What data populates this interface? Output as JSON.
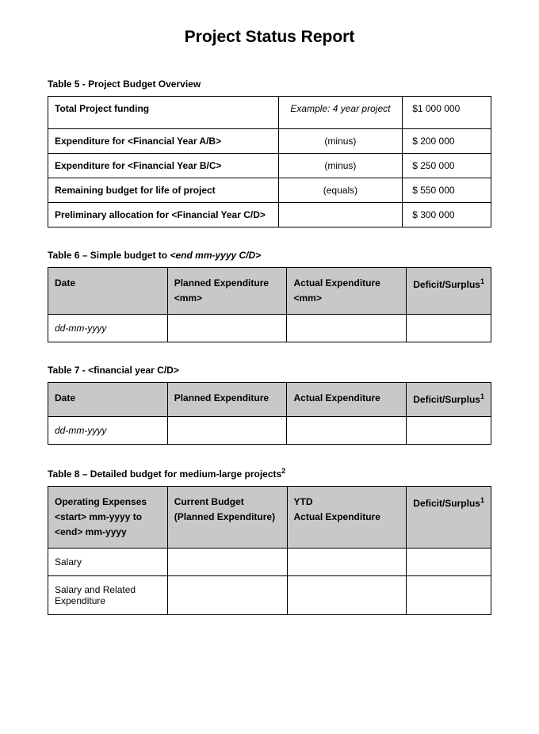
{
  "title": "Project Status Report",
  "table5": {
    "caption": "Table 5 - Project Budget Overview",
    "rows": [
      {
        "label": "Total Project funding",
        "note": "Example: 4 year project",
        "amount": "$1 000 000"
      },
      {
        "label": "Expenditure for <Financial Year A/B>",
        "note": "(minus)",
        "amount": "$   200 000"
      },
      {
        "label": "Expenditure for <Financial Year B/C>",
        "note": "(minus)",
        "amount": "$   250 000"
      },
      {
        "label": "Remaining budget for life of project",
        "note": "(equals)",
        "amount": "$   550 000"
      },
      {
        "label": "Preliminary allocation for <Financial Year C/D>",
        "note": "",
        "amount": "$   300 000"
      }
    ]
  },
  "table6": {
    "caption_prefix": "Table 6 – Simple budget to ",
    "caption_italic": "<end mm-yyyy C/D>",
    "headers": {
      "col1": "Date",
      "col2": "Planned Expenditure <mm>",
      "col3": "Actual Expenditure <mm>",
      "col4": "Deficit/Surplus",
      "col4_sup": "1"
    },
    "row1": "dd-mm-yyyy"
  },
  "table7": {
    "caption": "Table 7 - <financial year C/D>",
    "headers": {
      "col1": "Date",
      "col2": "Planned Expenditure",
      "col3": "Actual Expenditure",
      "col4": "Deficit/Surplus",
      "col4_sup": "1"
    },
    "row1": "dd-mm-yyyy"
  },
  "table8": {
    "caption": "Table 8 – Detailed budget for medium-large projects",
    "caption_sup": "2",
    "headers": {
      "col1": "Operating Expenses <start> mm-yyyy  to <end> mm-yyyy",
      "col2": "Current Budget (Planned Expenditure)",
      "col3_line1": "YTD",
      "col3_line2": "Actual Expenditure",
      "col4": "Deficit/Surplus",
      "col4_sup": "1"
    },
    "rows": [
      "Salary",
      "Salary and Related Expenditure"
    ]
  },
  "colors": {
    "header_bg": "#c8c8c8",
    "border": "#000000",
    "text": "#000000",
    "background": "#ffffff"
  },
  "typography": {
    "title_fontsize": 21,
    "caption_fontsize": 12,
    "body_fontsize": 12
  }
}
